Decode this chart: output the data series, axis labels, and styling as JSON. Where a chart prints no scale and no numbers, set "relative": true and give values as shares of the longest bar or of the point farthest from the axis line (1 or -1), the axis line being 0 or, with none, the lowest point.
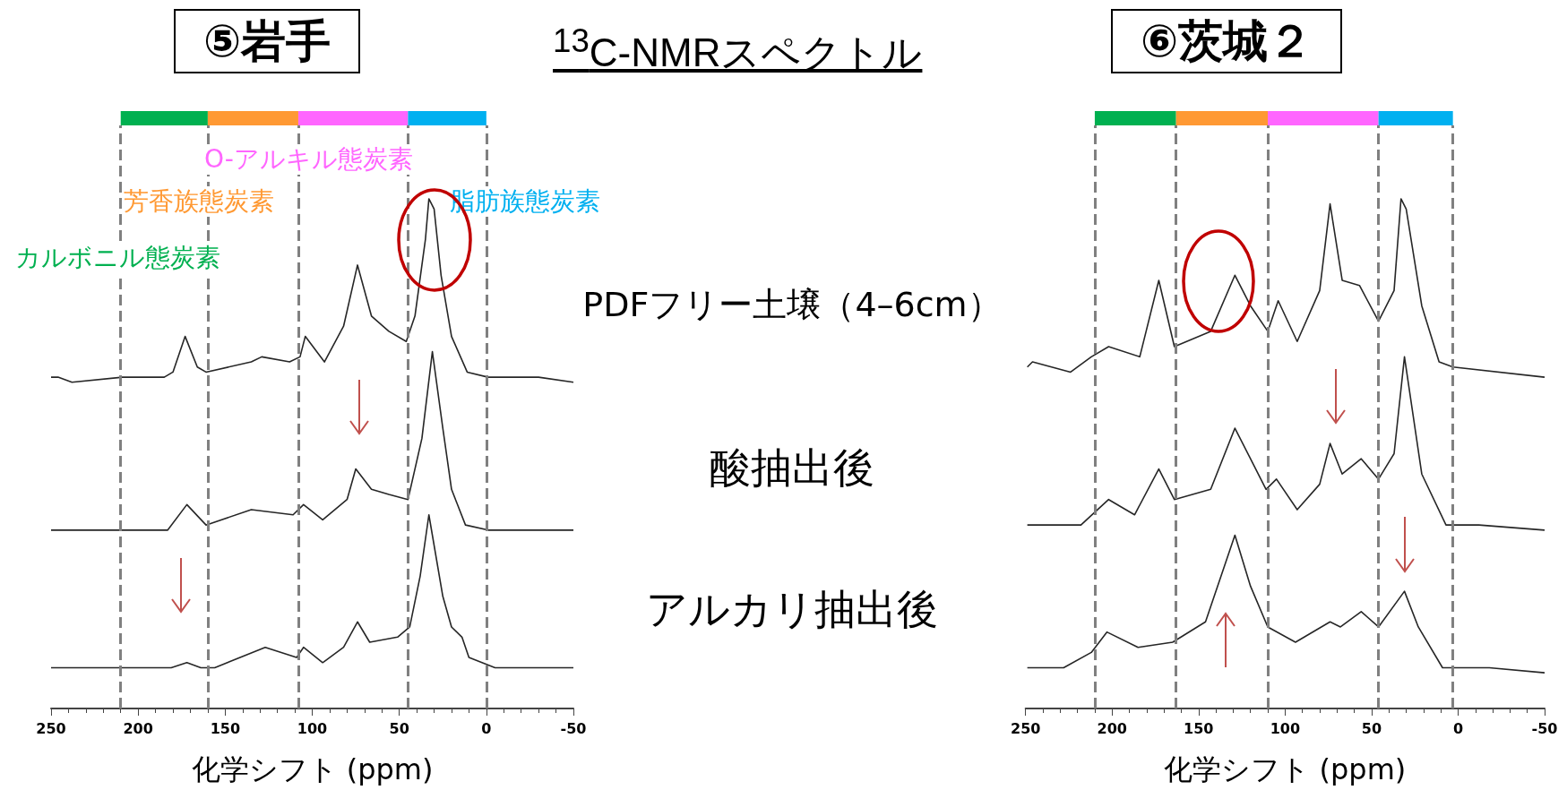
{
  "chart_data": [
    {
      "type": "line",
      "title": "⑤岩手",
      "xlabel": "化学シフト (ppm)",
      "relative": true,
      "marker": "none",
      "xlim": [
        250,
        -50
      ],
      "xticks": [
        250,
        200,
        150,
        100,
        50,
        0,
        -50
      ],
      "annotations": [
        "$^{13}$C-NMRスペクトル",
        "カルボニル態炭素",
        "芳香族態炭素",
        "O-アルキル態炭素",
        "脂肪族態炭素"
      ],
      "ref_lines": [
        {
          "axis": "x",
          "value": 210,
          "color": "#808080",
          "line_style": "dashed"
        },
        {
          "axis": "x",
          "value": 160,
          "color": "#808080",
          "line_style": "dashed"
        },
        {
          "axis": "x",
          "value": 108,
          "color": "#808080",
          "line_style": "dashed"
        },
        {
          "axis": "x",
          "value": 45,
          "color": "#808080",
          "line_style": "dashed"
        },
        {
          "axis": "x",
          "value": 0,
          "color": "#808080",
          "line_style": "dashed"
        }
      ],
      "series": [
        {
          "name": "PDFフリー土壌（4–6cm）",
          "color": "#262626",
          "x": [
            250,
            246,
            238,
            209,
            185,
            180,
            173,
            166,
            161,
            135,
            129,
            113,
            107,
            104,
            93,
            82,
            74,
            66,
            56,
            46,
            41,
            35,
            33,
            30,
            26,
            20,
            11,
            -1,
            -30,
            -50
          ],
          "values": [
            0.65,
            0.65,
            0.64,
            0.65,
            0.65,
            0.66,
            0.73,
            0.67,
            0.66,
            0.68,
            0.69,
            0.68,
            0.69,
            0.73,
            0.68,
            0.75,
            0.87,
            0.77,
            0.74,
            0.72,
            0.77,
            0.92,
            1.0,
            0.98,
            0.85,
            0.73,
            0.66,
            0.65,
            0.65,
            0.64
          ]
        },
        {
          "name": "酸抽出後",
          "color": "#262626",
          "x": [
            250,
            209,
            183,
            172,
            161,
            135,
            111,
            105,
            94,
            80,
            75,
            66,
            56,
            45,
            37,
            31,
            25,
            20,
            12,
            -1,
            -50
          ],
          "values": [
            0.35,
            0.35,
            0.35,
            0.4,
            0.36,
            0.39,
            0.38,
            0.4,
            0.37,
            0.41,
            0.47,
            0.43,
            0.42,
            0.41,
            0.53,
            0.7,
            0.55,
            0.43,
            0.36,
            0.35,
            0.35
          ]
        },
        {
          "name": "アルカリ抽出後",
          "color": "#262626",
          "x": [
            250,
            209,
            181,
            172,
            164,
            156,
            127,
            109,
            105,
            94,
            82,
            74,
            67,
            51,
            44,
            38,
            33,
            25,
            20,
            14,
            10,
            -5,
            -50
          ],
          "values": [
            0.08,
            0.08,
            0.08,
            0.09,
            0.08,
            0.08,
            0.12,
            0.1,
            0.12,
            0.09,
            0.12,
            0.17,
            0.13,
            0.14,
            0.16,
            0.26,
            0.38,
            0.22,
            0.16,
            0.14,
            0.1,
            0.08,
            0.08
          ]
        }
      ]
    },
    {
      "type": "line",
      "title": "⑥茨城２",
      "xlabel": "化学シフト (ppm)",
      "relative": true,
      "marker": "none",
      "xlim": [
        250,
        -50
      ],
      "xticks": [
        250,
        200,
        150,
        100,
        50,
        0,
        -50
      ],
      "ref_lines": [
        {
          "axis": "x",
          "value": 210,
          "color": "#808080",
          "line_style": "dashed"
        },
        {
          "axis": "x",
          "value": 163,
          "color": "#808080",
          "line_style": "dashed"
        },
        {
          "axis": "x",
          "value": 110,
          "color": "#808080",
          "line_style": "dashed"
        },
        {
          "axis": "x",
          "value": 46,
          "color": "#808080",
          "line_style": "dashed"
        },
        {
          "axis": "x",
          "value": 3,
          "color": "#808080",
          "line_style": "dashed"
        }
      ],
      "series": [
        {
          "color": "#262626",
          "x": [
            249,
            246,
            224,
            212,
            202,
            184,
            173,
            164,
            143,
            129,
            120,
            110,
            104,
            93,
            80,
            74,
            67,
            57,
            46,
            37,
            33,
            30,
            21,
            11,
            3,
            -50
          ],
          "values": [
            0.67,
            0.68,
            0.66,
            0.69,
            0.71,
            0.69,
            0.84,
            0.71,
            0.74,
            0.85,
            0.79,
            0.74,
            0.8,
            0.72,
            0.82,
            0.99,
            0.84,
            0.83,
            0.76,
            0.82,
            1.0,
            0.98,
            0.79,
            0.68,
            0.67,
            0.65
          ]
        },
        {
          "color": "#262626",
          "x": [
            249,
            218,
            202,
            187,
            173,
            164,
            143,
            129,
            111,
            105,
            93,
            80,
            74,
            67,
            56,
            46,
            37,
            31,
            21,
            7,
            -12,
            -50
          ],
          "values": [
            0.36,
            0.36,
            0.41,
            0.38,
            0.47,
            0.41,
            0.43,
            0.55,
            0.43,
            0.45,
            0.39,
            0.44,
            0.52,
            0.46,
            0.49,
            0.45,
            0.5,
            0.69,
            0.46,
            0.36,
            0.36,
            0.35
          ]
        },
        {
          "color": "#262626",
          "x": [
            249,
            228,
            212,
            203,
            185,
            165,
            146,
            129,
            120,
            110,
            94,
            74,
            68,
            56,
            46,
            31,
            23,
            9,
            -18,
            -50
          ],
          "values": [
            0.08,
            0.08,
            0.11,
            0.15,
            0.12,
            0.13,
            0.17,
            0.34,
            0.24,
            0.16,
            0.13,
            0.17,
            0.16,
            0.19,
            0.16,
            0.23,
            0.16,
            0.08,
            0.08,
            0.07
          ]
        }
      ]
    }
  ]
}
